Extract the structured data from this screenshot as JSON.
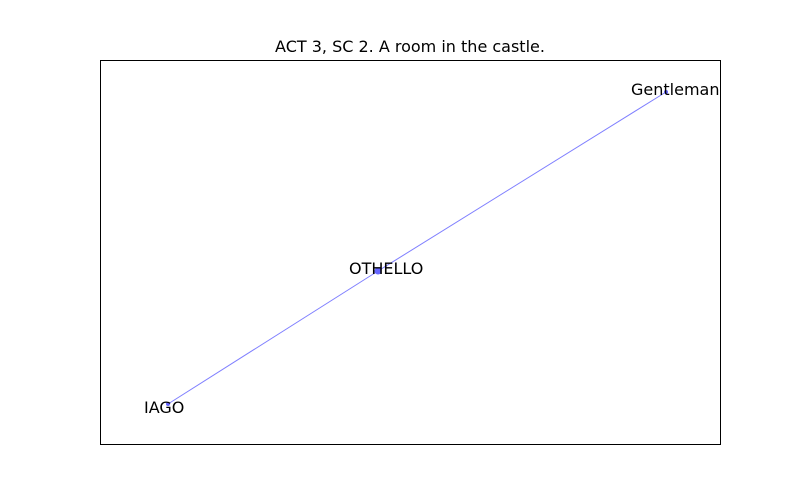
{
  "figure": {
    "title": "ACT 3, SC 2. A room in the castle."
  },
  "graph": {
    "nodes": [
      {
        "id": "gentleman",
        "label": "Gentleman"
      },
      {
        "id": "othello",
        "label": "OTHELLO"
      },
      {
        "id": "iago",
        "label": "IAGO"
      }
    ],
    "edges": [
      {
        "source": "othello",
        "target": "gentleman"
      },
      {
        "source": "othello",
        "target": "iago"
      }
    ],
    "colors": {
      "edge": "#7f7fff",
      "node": "#6666ff",
      "frame": "#000000"
    }
  }
}
